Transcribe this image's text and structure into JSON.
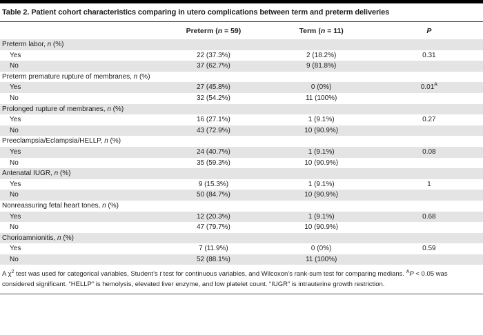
{
  "colors": {
    "top_bar": "#000000",
    "title_rule": "#2a2a2a",
    "bottom_rule": "#4a4a4a",
    "row_stripe": "#e4e4e4",
    "text": "#1c1c1c"
  },
  "title": "Table 2. Patient cohort characteristics comparing in utero complications between term and preterm deliveries",
  "header": {
    "preterm": [
      {
        "t": "Preterm ("
      },
      {
        "t": "n",
        "i": true
      },
      {
        "t": " = 59)"
      }
    ],
    "term": [
      {
        "t": "Term ("
      },
      {
        "t": "n",
        "i": true
      },
      {
        "t": " = 11)"
      }
    ],
    "p": [
      {
        "t": "P",
        "i": true
      }
    ]
  },
  "rows": [
    {
      "type": "category",
      "label": [
        {
          "t": "Preterm labor, "
        },
        {
          "t": "n",
          "i": true
        },
        {
          "t": " (%)"
        }
      ],
      "preterm": "",
      "term": "",
      "p": []
    },
    {
      "type": "data",
      "label": [
        {
          "t": "Yes"
        }
      ],
      "preterm": "22 (37.3%)",
      "term": "2 (18.2%)",
      "p": [
        {
          "t": "0.31"
        }
      ]
    },
    {
      "type": "data",
      "label": [
        {
          "t": "No"
        }
      ],
      "preterm": "37 (62.7%)",
      "term": "9 (81.8%)",
      "p": []
    },
    {
      "type": "category",
      "label": [
        {
          "t": "Preterm premature rupture of membranes, "
        },
        {
          "t": "n",
          "i": true
        },
        {
          "t": " (%)"
        }
      ],
      "preterm": "",
      "term": "",
      "p": []
    },
    {
      "type": "data",
      "label": [
        {
          "t": "Yes"
        }
      ],
      "preterm": "27 (45.8%)",
      "term": "0 (0%)",
      "p": [
        {
          "t": "0.01"
        },
        {
          "t": "A",
          "sup": true
        }
      ]
    },
    {
      "type": "data",
      "label": [
        {
          "t": "No"
        }
      ],
      "preterm": "32 (54.2%)",
      "term": "11 (100%)",
      "p": []
    },
    {
      "type": "category",
      "label": [
        {
          "t": "Prolonged rupture of membranes, "
        },
        {
          "t": "n",
          "i": true
        },
        {
          "t": " (%)"
        }
      ],
      "preterm": "",
      "term": "",
      "p": []
    },
    {
      "type": "data",
      "label": [
        {
          "t": "Yes"
        }
      ],
      "preterm": "16 (27.1%)",
      "term": "1 (9.1%)",
      "p": [
        {
          "t": "0.27"
        }
      ]
    },
    {
      "type": "data",
      "label": [
        {
          "t": "No"
        }
      ],
      "preterm": "43 (72.9%)",
      "term": "10 (90.9%)",
      "p": []
    },
    {
      "type": "category",
      "label": [
        {
          "t": "Preeclampsia/Eclampsia/HELLP, "
        },
        {
          "t": "n",
          "i": true
        },
        {
          "t": " (%)"
        }
      ],
      "preterm": "",
      "term": "",
      "p": []
    },
    {
      "type": "data",
      "label": [
        {
          "t": "Yes"
        }
      ],
      "preterm": "24 (40.7%)",
      "term": "1 (9.1%)",
      "p": [
        {
          "t": "0.08"
        }
      ]
    },
    {
      "type": "data",
      "label": [
        {
          "t": "No"
        }
      ],
      "preterm": "35 (59.3%)",
      "term": "10 (90.9%)",
      "p": []
    },
    {
      "type": "category",
      "label": [
        {
          "t": "Antenatal IUGR, "
        },
        {
          "t": "n",
          "i": true
        },
        {
          "t": " (%)"
        }
      ],
      "preterm": "",
      "term": "",
      "p": []
    },
    {
      "type": "data",
      "label": [
        {
          "t": "Yes"
        }
      ],
      "preterm": "9 (15.3%)",
      "term": "1 (9.1%)",
      "p": [
        {
          "t": "1"
        }
      ]
    },
    {
      "type": "data",
      "label": [
        {
          "t": "No"
        }
      ],
      "preterm": "50 (84.7%)",
      "term": "10 (90.9%)",
      "p": []
    },
    {
      "type": "category",
      "label": [
        {
          "t": "Nonreassuring fetal heart tones, "
        },
        {
          "t": "n",
          "i": true
        },
        {
          "t": " (%)"
        }
      ],
      "preterm": "",
      "term": "",
      "p": []
    },
    {
      "type": "data",
      "label": [
        {
          "t": "Yes"
        }
      ],
      "preterm": "12 (20.3%)",
      "term": "1 (9.1%)",
      "p": [
        {
          "t": "0.68"
        }
      ]
    },
    {
      "type": "data",
      "label": [
        {
          "t": "No"
        }
      ],
      "preterm": "47 (79.7%)",
      "term": "10 (90.9%)",
      "p": []
    },
    {
      "type": "category",
      "label": [
        {
          "t": "Chorioamnionitis, "
        },
        {
          "t": "n",
          "i": true
        },
        {
          "t": " (%)"
        }
      ],
      "preterm": "",
      "term": "",
      "p": []
    },
    {
      "type": "data",
      "label": [
        {
          "t": "Yes"
        }
      ],
      "preterm": "7 (11.9%)",
      "term": "0 (0%)",
      "p": [
        {
          "t": "0.59"
        }
      ]
    },
    {
      "type": "data",
      "label": [
        {
          "t": "No"
        }
      ],
      "preterm": "52 (88.1%)",
      "term": "11 (100%)",
      "p": []
    }
  ],
  "footnote": [
    {
      "t": "A "
    },
    {
      "t": "χ"
    },
    {
      "t": "2",
      "sup": true
    },
    {
      "t": " test was used for categorical variables, Student’s "
    },
    {
      "t": "t",
      "i": true
    },
    {
      "t": " test for continuous variables, and Wilcoxon’s rank-sum test for comparing medians. "
    },
    {
      "t": "A",
      "sup": true
    },
    {
      "t": "P",
      "i": true
    },
    {
      "t": " < 0.05 was considered significant. “HELLP” is hemolysis, elevated liver enzyme, and low platelet count. “IUGR” is intrauterine growth restriction."
    }
  ]
}
